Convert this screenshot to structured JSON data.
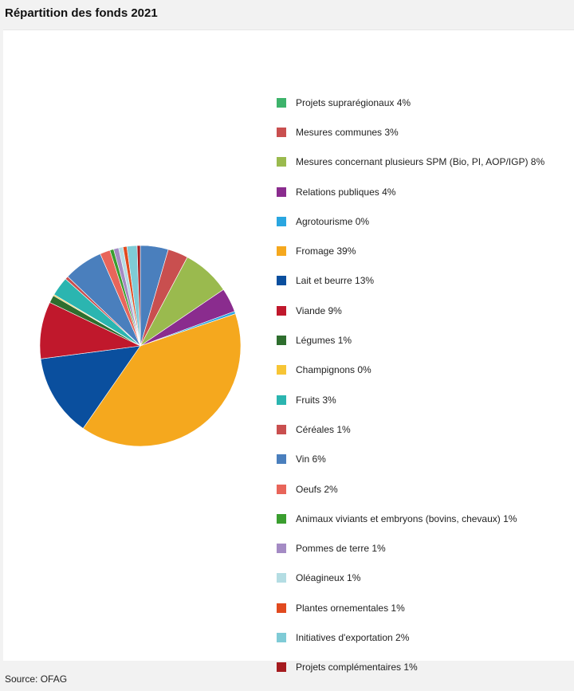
{
  "title": "Répartition des fonds 2021",
  "source": "Source: OFAG",
  "chart_data": {
    "type": "pie",
    "title": "Répartition des fonds 2021",
    "legend_position": "right",
    "slices": [
      {
        "label": "Projets suprarégionaux 4%",
        "value": 4.4,
        "color": "#4a7fbd",
        "legend_color": "#3db36b"
      },
      {
        "label": "Mesures communes 3%",
        "value": 3.2,
        "color": "#c94f4f"
      },
      {
        "label": "Mesures concernant plusieurs SPM (Bio, PI, AOP/IGP) 8%",
        "value": 7.6,
        "color": "#9aba4e"
      },
      {
        "label": "Relations publiques 4%",
        "value": 3.8,
        "color": "#8a2c8e"
      },
      {
        "label": "Agrotourisme 0%",
        "value": 0.4,
        "color": "#2aa6e0"
      },
      {
        "label": "Fromage 39%",
        "value": 39.0,
        "color": "#f5a81e"
      },
      {
        "label": "Lait et beurre 13%",
        "value": 13.0,
        "color": "#0a4f9e"
      },
      {
        "label": "Viande 9%",
        "value": 9.0,
        "color": "#c0182c"
      },
      {
        "label": "Légumes 1%",
        "value": 1.2,
        "color": "#2e6e2e"
      },
      {
        "label": "Champignons 0%",
        "value": 0.2,
        "color": "#f7c535"
      },
      {
        "label": "Fruits 3%",
        "value": 3.0,
        "color": "#2bb5b0"
      },
      {
        "label": "Céréales 1%",
        "value": 0.5,
        "color": "#c94f4f"
      },
      {
        "label": "Vin 6%",
        "value": 6.2,
        "color": "#4a7fbd"
      },
      {
        "label": "Oeufs 2%",
        "value": 1.6,
        "color": "#e8655a"
      },
      {
        "label": "Animaux viviants et embryons (bovins, chevaux) 1%",
        "value": 0.6,
        "color": "#3a9e2f"
      },
      {
        "label": "Pommes de terre 1%",
        "value": 0.8,
        "color": "#a48bc4"
      },
      {
        "label": "Oléagineux 1%",
        "value": 0.7,
        "color": "#b4dde3"
      },
      {
        "label": "Plantes ornementales 1%",
        "value": 0.6,
        "color": "#e14a1f"
      },
      {
        "label": "Initiatives d'exportation 2%",
        "value": 1.6,
        "color": "#7fcbd6"
      },
      {
        "label": "Projets complémentaires 1%",
        "value": 0.5,
        "color": "#a51b1f"
      }
    ]
  }
}
